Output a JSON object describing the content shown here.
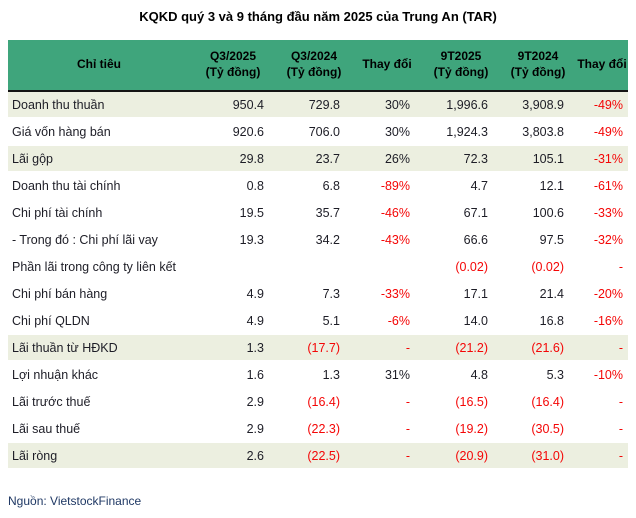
{
  "title": "KQKD quý 3 và 9 tháng đầu năm 2025 của Trung An (TAR)",
  "source": "Nguồn: VietstockFinance",
  "colors": {
    "header_bg": "#3FA57C",
    "highlight_row_bg": "#ECEFE0",
    "negative_text": "#F40606",
    "body_text": "#1D1D26",
    "source_text": "#1F3864",
    "header_divider": "#141414"
  },
  "chart_data": {
    "type": "table",
    "title": "KQKD quý 3 và 9 tháng đầu năm 2025 của Trung An (TAR)",
    "unit": "Tỷ đồng",
    "columns": [
      "Chỉ tiêu",
      "Q3/2025\n(Tỷ đồng)",
      "Q3/2024\n(Tỷ đồng)",
      "Thay đổi",
      "9T2025\n(Tỷ đồng)",
      "9T2024\n(Tỷ đồng)",
      "Thay đổi"
    ],
    "rows": [
      {
        "label": "Doanh thu thuần",
        "values": [
          "950.4",
          "729.8",
          "30%",
          "1,996.6",
          "3,908.9",
          "-49%"
        ],
        "highlight": true
      },
      {
        "label": "Giá vốn hàng bán",
        "values": [
          "920.6",
          "706.0",
          "30%",
          "1,924.3",
          "3,803.8",
          "-49%"
        ],
        "highlight": false
      },
      {
        "label": "Lãi gộp",
        "values": [
          "29.8",
          "23.7",
          "26%",
          "72.3",
          "105.1",
          "-31%"
        ],
        "highlight": true
      },
      {
        "label": "Doanh thu tài chính",
        "values": [
          "0.8",
          "6.8",
          "-89%",
          "4.7",
          "12.1",
          "-61%"
        ],
        "highlight": false
      },
      {
        "label": "Chi phí tài chính",
        "values": [
          "19.5",
          "35.7",
          "-46%",
          "67.1",
          "100.6",
          "-33%"
        ],
        "highlight": false
      },
      {
        "label": "- Trong đó : Chi phí lãi vay",
        "values": [
          "19.3",
          "34.2",
          "-43%",
          "66.6",
          "97.5",
          "-32%"
        ],
        "highlight": false
      },
      {
        "label": "Phần lãi trong công ty liên kết",
        "values": [
          "",
          "",
          "",
          "(0.02)",
          "(0.02)",
          "-"
        ],
        "highlight": false
      },
      {
        "label": "Chi phí bán hàng",
        "values": [
          "4.9",
          "7.3",
          "-33%",
          "17.1",
          "21.4",
          "-20%"
        ],
        "highlight": false
      },
      {
        "label": "Chi phí QLDN",
        "values": [
          "4.9",
          "5.1",
          "-6%",
          "14.0",
          "16.8",
          "-16%"
        ],
        "highlight": false
      },
      {
        "label": "Lãi thuần từ HĐKD",
        "values": [
          "1.3",
          "(17.7)",
          "-",
          "(21.2)",
          "(21.6)",
          "-"
        ],
        "highlight": true
      },
      {
        "label": "Lợi nhuận khác",
        "values": [
          "1.6",
          "1.3",
          "31%",
          "4.8",
          "5.3",
          "-10%"
        ],
        "highlight": false
      },
      {
        "label": "Lãi trước thuế",
        "values": [
          "2.9",
          "(16.4)",
          "-",
          "(16.5)",
          "(16.4)",
          "-"
        ],
        "highlight": false
      },
      {
        "label": "Lãi sau thuế",
        "values": [
          "2.9",
          "(22.3)",
          "-",
          "(19.2)",
          "(30.5)",
          "-"
        ],
        "highlight": false
      },
      {
        "label": "Lãi ròng",
        "values": [
          "2.6",
          "(22.5)",
          "-",
          "(20.9)",
          "(31.0)",
          "-"
        ],
        "highlight": true
      }
    ]
  }
}
